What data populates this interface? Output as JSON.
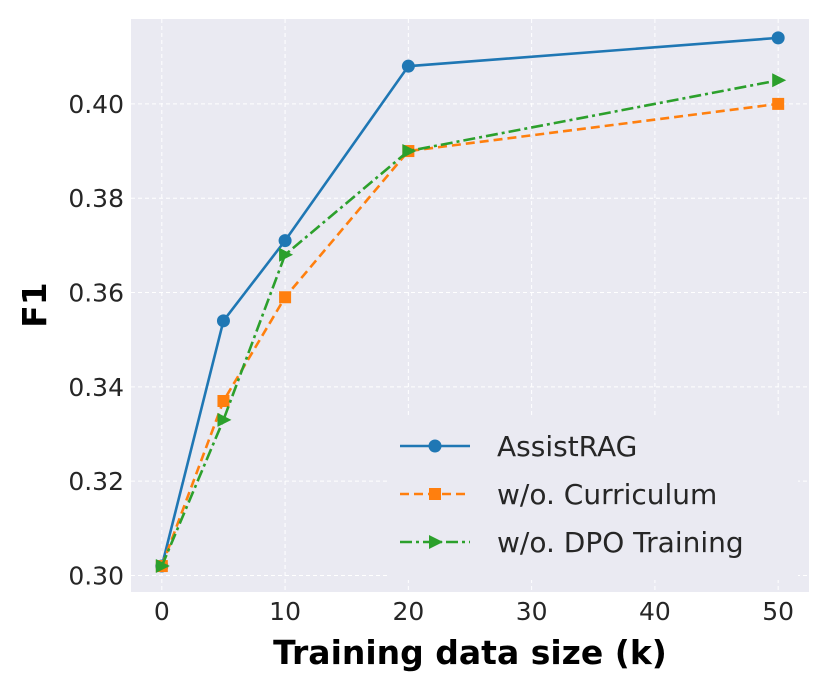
{
  "chart_data": {
    "type": "line",
    "title": "",
    "xlabel": "Training data size (k)",
    "ylabel": "F1",
    "x": [
      0,
      5,
      10,
      20,
      50
    ],
    "xlim": [
      -2.5,
      52.5
    ],
    "ylim": [
      0.2965,
      0.418
    ],
    "xticks": [
      0,
      10,
      20,
      30,
      40,
      50
    ],
    "xtick_labels": [
      "0",
      "10",
      "20",
      "30",
      "40",
      "50"
    ],
    "yticks": [
      0.3,
      0.32,
      0.34,
      0.36,
      0.38,
      0.4
    ],
    "ytick_labels": [
      "0.30",
      "0.32",
      "0.34",
      "0.36",
      "0.38",
      "0.40"
    ],
    "grid": true,
    "legend_position": "bottom-right",
    "series": [
      {
        "name": "AssistRAG",
        "values": [
          0.302,
          0.354,
          0.371,
          0.408,
          0.414
        ],
        "color": "#1f77b4",
        "marker": "circle",
        "dash": ""
      },
      {
        "name": "w/o. Curriculum",
        "values": [
          0.302,
          0.337,
          0.359,
          0.39,
          0.4
        ],
        "color": "#ff7f0e",
        "marker": "square",
        "dash": "9 5"
      },
      {
        "name": "w/o. DPO Training",
        "values": [
          0.302,
          0.333,
          0.368,
          0.39,
          0.405
        ],
        "color": "#2ca02c",
        "marker": "triangle-right",
        "dash": "12 4 3 4"
      }
    ],
    "background_color": "#eaeaf2"
  }
}
